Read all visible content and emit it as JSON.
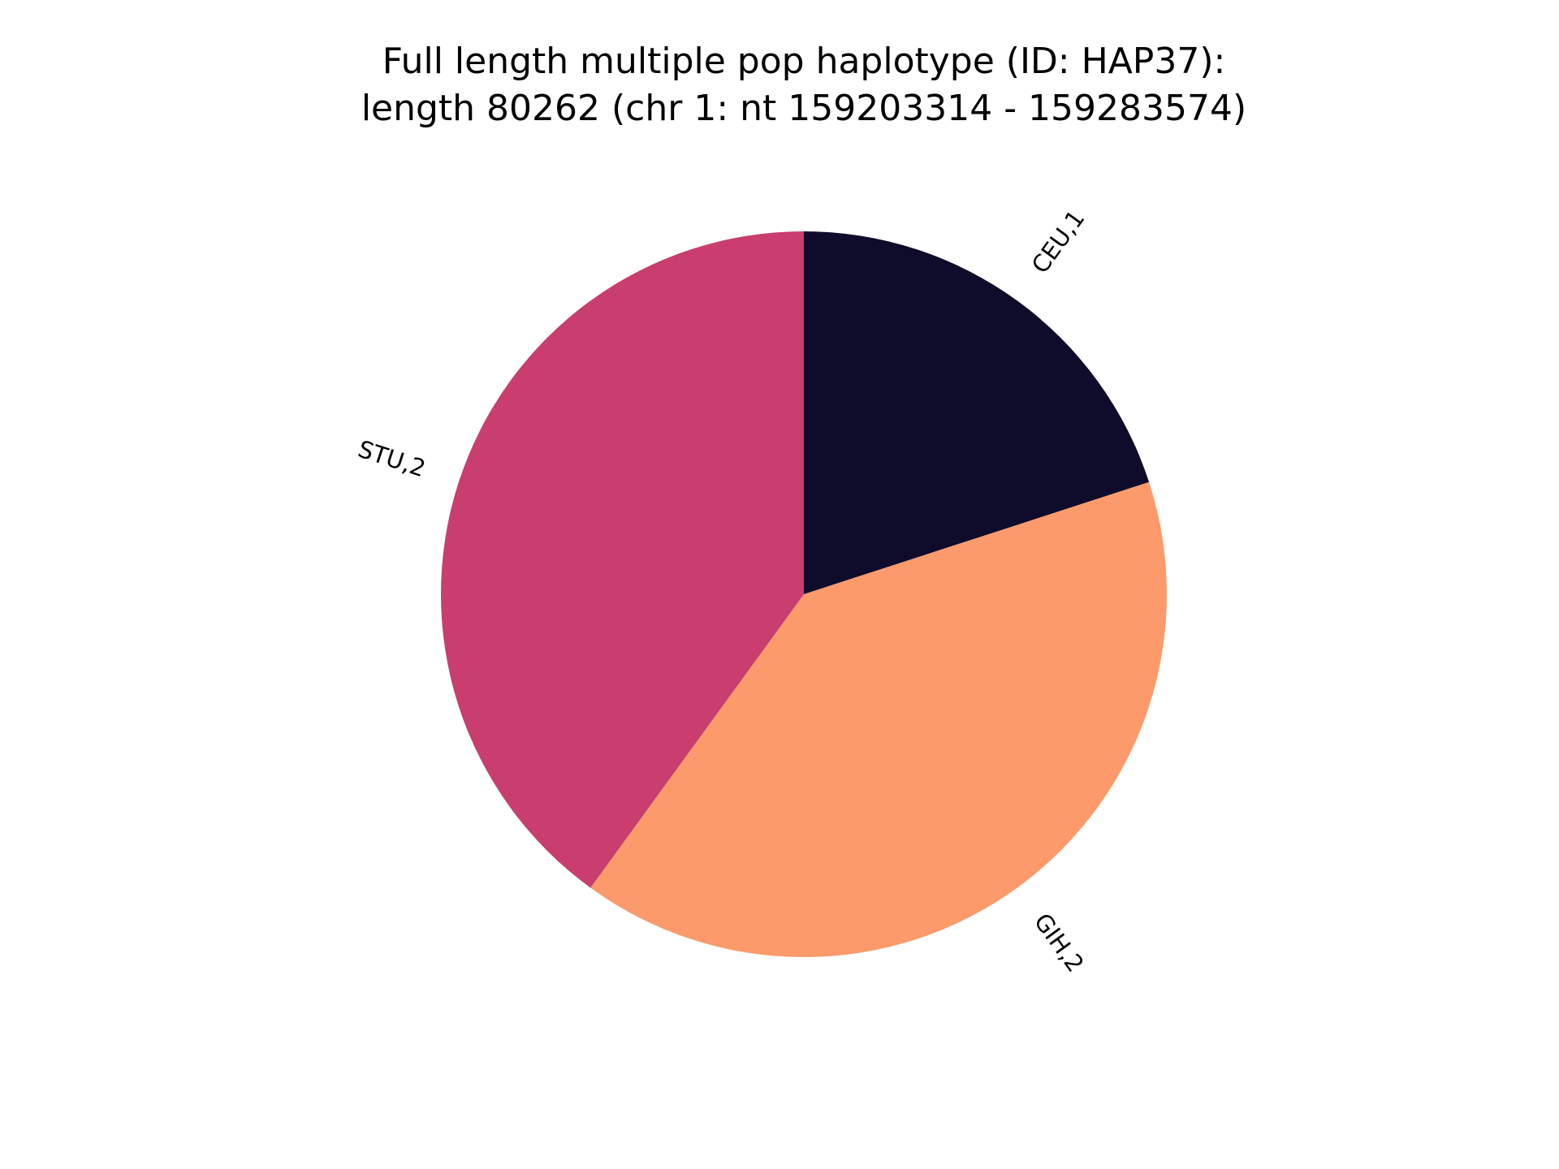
{
  "chart_data": {
    "type": "pie",
    "title_lines": [
      "Full length multiple pop haplotype (ID: HAP37):",
      "length 80262 (chr 1: nt 159203314 - 159283574)"
    ],
    "slices": [
      {
        "label": "CEU,1",
        "value": 1,
        "color": "#0f0c2b"
      },
      {
        "label": "GIH,2",
        "value": 2,
        "color": "#fc9a6b"
      },
      {
        "label": "STU,2",
        "value": 2,
        "color": "#c93e6f"
      }
    ],
    "start_angle_deg": 90,
    "direction": "clockwise"
  }
}
